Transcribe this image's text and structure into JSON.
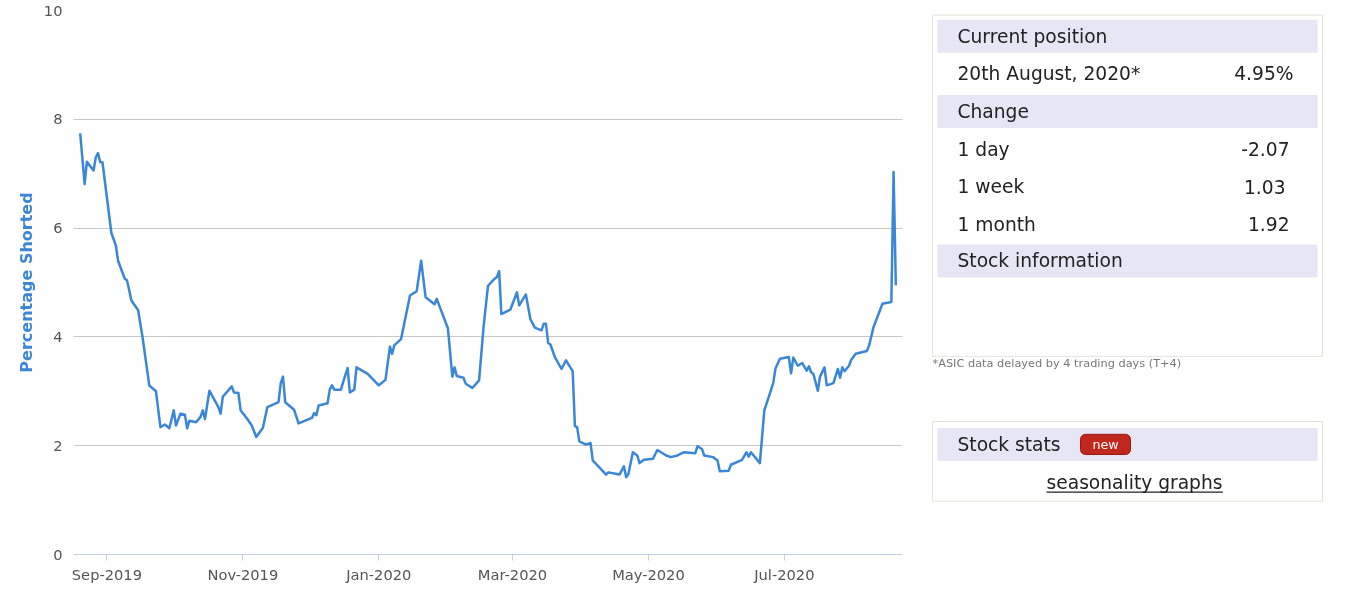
{
  "chart_data": [
    {
      "type": "line",
      "ylabel": "Percentage Shorted",
      "xlim": [
        "2019-08-17",
        "2020-08-23"
      ],
      "ylim": [
        0,
        10
      ],
      "yticks": [
        0,
        2,
        4,
        6,
        8,
        10
      ],
      "xticks": [
        {
          "value": "2019-09-01",
          "label": "Sep-2019"
        },
        {
          "value": "2019-11-01",
          "label": "Nov-2019"
        },
        {
          "value": "2020-01-01",
          "label": "Jan-2020"
        },
        {
          "value": "2020-03-01",
          "label": "Mar-2020"
        },
        {
          "value": "2020-05-01",
          "label": "May-2020"
        },
        {
          "value": "2020-07-01",
          "label": "Jul-2020"
        }
      ],
      "grid": "y",
      "marker": "none",
      "line_style": "solid",
      "series": [
        {
          "color": "#3a86d8",
          "x": [
            "2019-08-20",
            "2019-08-22",
            "2019-08-23",
            "2019-08-26",
            "2019-08-27",
            "2019-08-28",
            "2019-08-29",
            "2019-08-30",
            "2019-09-03",
            "2019-09-05",
            "2019-09-06",
            "2019-09-09",
            "2019-09-10",
            "2019-09-12",
            "2019-09-15",
            "2019-09-17",
            "2019-09-20",
            "2019-09-23",
            "2019-09-25",
            "2019-09-27",
            "2019-09-29",
            "2019-10-01",
            "2019-10-02",
            "2019-10-04",
            "2019-10-06",
            "2019-10-07",
            "2019-10-08",
            "2019-10-11",
            "2019-10-13",
            "2019-10-14",
            "2019-10-15",
            "2019-10-17",
            "2019-10-21",
            "2019-10-22",
            "2019-10-23",
            "2019-10-27",
            "2019-10-28",
            "2019-10-30",
            "2019-10-31",
            "2019-11-03",
            "2019-11-05",
            "2019-11-07",
            "2019-11-10",
            "2019-11-12",
            "2019-11-17",
            "2019-11-18",
            "2019-11-19",
            "2019-11-20",
            "2019-11-24",
            "2019-11-26",
            "2019-12-02",
            "2019-12-03",
            "2019-12-04",
            "2019-12-05",
            "2019-12-09",
            "2019-12-10",
            "2019-12-11",
            "2019-12-12",
            "2019-12-15",
            "2019-12-16",
            "2019-12-18",
            "2019-12-19",
            "2019-12-21",
            "2019-12-22",
            "2019-12-27",
            "2020-01-01",
            "2020-01-04",
            "2020-01-06",
            "2020-01-07",
            "2020-01-08",
            "2020-01-11",
            "2020-01-15",
            "2020-01-18",
            "2020-01-20",
            "2020-01-22",
            "2020-01-26",
            "2020-01-27",
            "2020-02-01",
            "2020-02-03",
            "2020-02-04",
            "2020-02-05",
            "2020-02-08",
            "2020-02-09",
            "2020-02-12",
            "2020-02-15",
            "2020-02-17",
            "2020-02-19",
            "2020-02-22",
            "2020-02-23",
            "2020-02-24",
            "2020-02-25",
            "2020-02-29",
            "2020-03-03",
            "2020-03-04",
            "2020-03-07",
            "2020-03-09",
            "2020-03-11",
            "2020-03-14",
            "2020-03-15",
            "2020-03-16",
            "2020-03-17",
            "2020-03-18",
            "2020-03-20",
            "2020-03-23",
            "2020-03-25",
            "2020-03-28",
            "2020-03-29",
            "2020-03-30",
            "2020-03-31",
            "2020-04-03",
            "2020-04-05",
            "2020-04-06",
            "2020-04-12",
            "2020-04-13",
            "2020-04-18",
            "2020-04-20",
            "2020-04-21",
            "2020-04-22",
            "2020-04-24",
            "2020-04-26",
            "2020-04-27",
            "2020-04-29",
            "2020-05-03",
            "2020-05-05",
            "2020-05-09",
            "2020-05-11",
            "2020-05-14",
            "2020-05-17",
            "2020-05-22",
            "2020-05-23",
            "2020-05-25",
            "2020-05-26",
            "2020-05-30",
            "2020-06-01",
            "2020-06-02",
            "2020-06-06",
            "2020-06-07",
            "2020-06-12",
            "2020-06-14",
            "2020-06-15",
            "2020-06-16",
            "2020-06-20",
            "2020-06-22",
            "2020-06-26",
            "2020-06-27",
            "2020-06-29",
            "2020-07-03",
            "2020-07-04",
            "2020-07-05",
            "2020-07-07",
            "2020-07-09",
            "2020-07-11",
            "2020-07-12",
            "2020-07-13",
            "2020-07-14",
            "2020-07-16",
            "2020-07-17",
            "2020-07-19",
            "2020-07-20",
            "2020-07-23",
            "2020-07-25",
            "2020-07-26",
            "2020-07-27",
            "2020-07-28",
            "2020-07-30",
            "2020-07-31",
            "2020-08-02",
            "2020-08-07",
            "2020-08-08",
            "2020-08-10",
            "2020-08-14",
            "2020-08-18",
            "2020-08-19",
            "2020-08-20"
          ],
          "values": [
            7.74,
            6.81,
            7.22,
            7.06,
            7.3,
            7.38,
            7.21,
            7.21,
            5.91,
            5.68,
            5.4,
            5.07,
            5.04,
            4.67,
            4.49,
            3.99,
            3.11,
            3.0,
            2.34,
            2.39,
            2.32,
            2.65,
            2.37,
            2.59,
            2.57,
            2.32,
            2.46,
            2.43,
            2.53,
            2.65,
            2.49,
            3.01,
            2.71,
            2.59,
            2.9,
            3.09,
            2.98,
            2.97,
            2.65,
            2.49,
            2.37,
            2.16,
            2.33,
            2.71,
            2.8,
            3.15,
            3.27,
            2.8,
            2.66,
            2.41,
            2.51,
            2.6,
            2.56,
            2.74,
            2.78,
            3.03,
            3.11,
            3.03,
            3.03,
            3.17,
            3.43,
            2.98,
            3.03,
            3.44,
            3.32,
            3.11,
            3.21,
            3.82,
            3.69,
            3.85,
            3.96,
            4.76,
            4.84,
            5.4,
            4.73,
            4.6,
            4.7,
            4.16,
            3.27,
            3.44,
            3.28,
            3.25,
            3.14,
            3.06,
            3.2,
            4.18,
            4.94,
            5.07,
            5.1,
            5.21,
            4.42,
            4.5,
            4.82,
            4.58,
            4.78,
            4.33,
            4.17,
            4.12,
            4.24,
            4.24,
            3.89,
            3.86,
            3.63,
            3.41,
            3.57,
            3.37,
            2.36,
            2.34,
            2.08,
            2.02,
            2.05,
            1.73,
            1.47,
            1.51,
            1.47,
            1.62,
            1.42,
            1.48,
            1.88,
            1.82,
            1.68,
            1.74,
            1.76,
            1.92,
            1.82,
            1.79,
            1.82,
            1.88,
            1.86,
            1.99,
            1.94,
            1.82,
            1.79,
            1.73,
            1.53,
            1.54,
            1.65,
            1.74,
            1.88,
            1.8,
            1.88,
            1.68,
            2.65,
            3.15,
            3.42,
            3.6,
            3.63,
            3.33,
            3.62,
            3.47,
            3.52,
            3.38,
            3.46,
            3.35,
            3.32,
            3.01,
            3.27,
            3.44,
            3.11,
            3.15,
            3.41,
            3.25,
            3.44,
            3.37,
            3.47,
            3.58,
            3.69,
            3.74,
            3.84,
            4.18,
            4.61,
            4.64,
            7.03,
            4.95
          ]
        }
      ]
    },
    {
      "type": "other",
      "annotations": [
        "Current position",
        "20th August, 2020*",
        "4.95%",
        "Change",
        "1 day",
        "-2.07",
        "1 week",
        "1.03",
        "1 month",
        "1.92",
        "Stock information",
        "*ASIC data delayed by 4 trading days (T+4)",
        "Stock stats",
        "new",
        "seasonality graphs"
      ]
    }
  ]
}
